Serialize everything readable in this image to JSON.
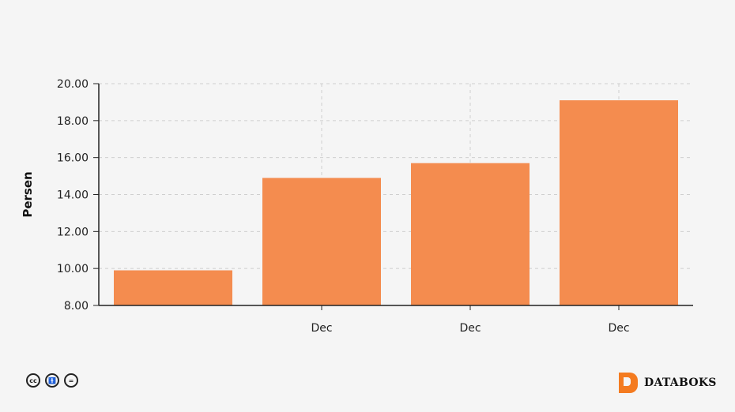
{
  "chart_data": {
    "type": "bar",
    "categories": [
      "",
      "Dec",
      "Dec",
      "Dec"
    ],
    "values": [
      9.9,
      14.9,
      15.7,
      19.1
    ],
    "ylabel": "Persen",
    "xlabel": "",
    "ylim": [
      8,
      20
    ],
    "yticks": [
      "8.00",
      "10.00",
      "12.00",
      "14.00",
      "16.00",
      "18.00",
      "20.00"
    ],
    "grid": true,
    "bar_color": "#f48c4f"
  },
  "footer": {
    "license_icons": [
      "cc-icon",
      "attribution-icon",
      "no-derivatives-icon"
    ],
    "cc_text": "cc",
    "nd_text": "=",
    "brand": "DATABOKS",
    "brand_color": "#f47b20"
  }
}
